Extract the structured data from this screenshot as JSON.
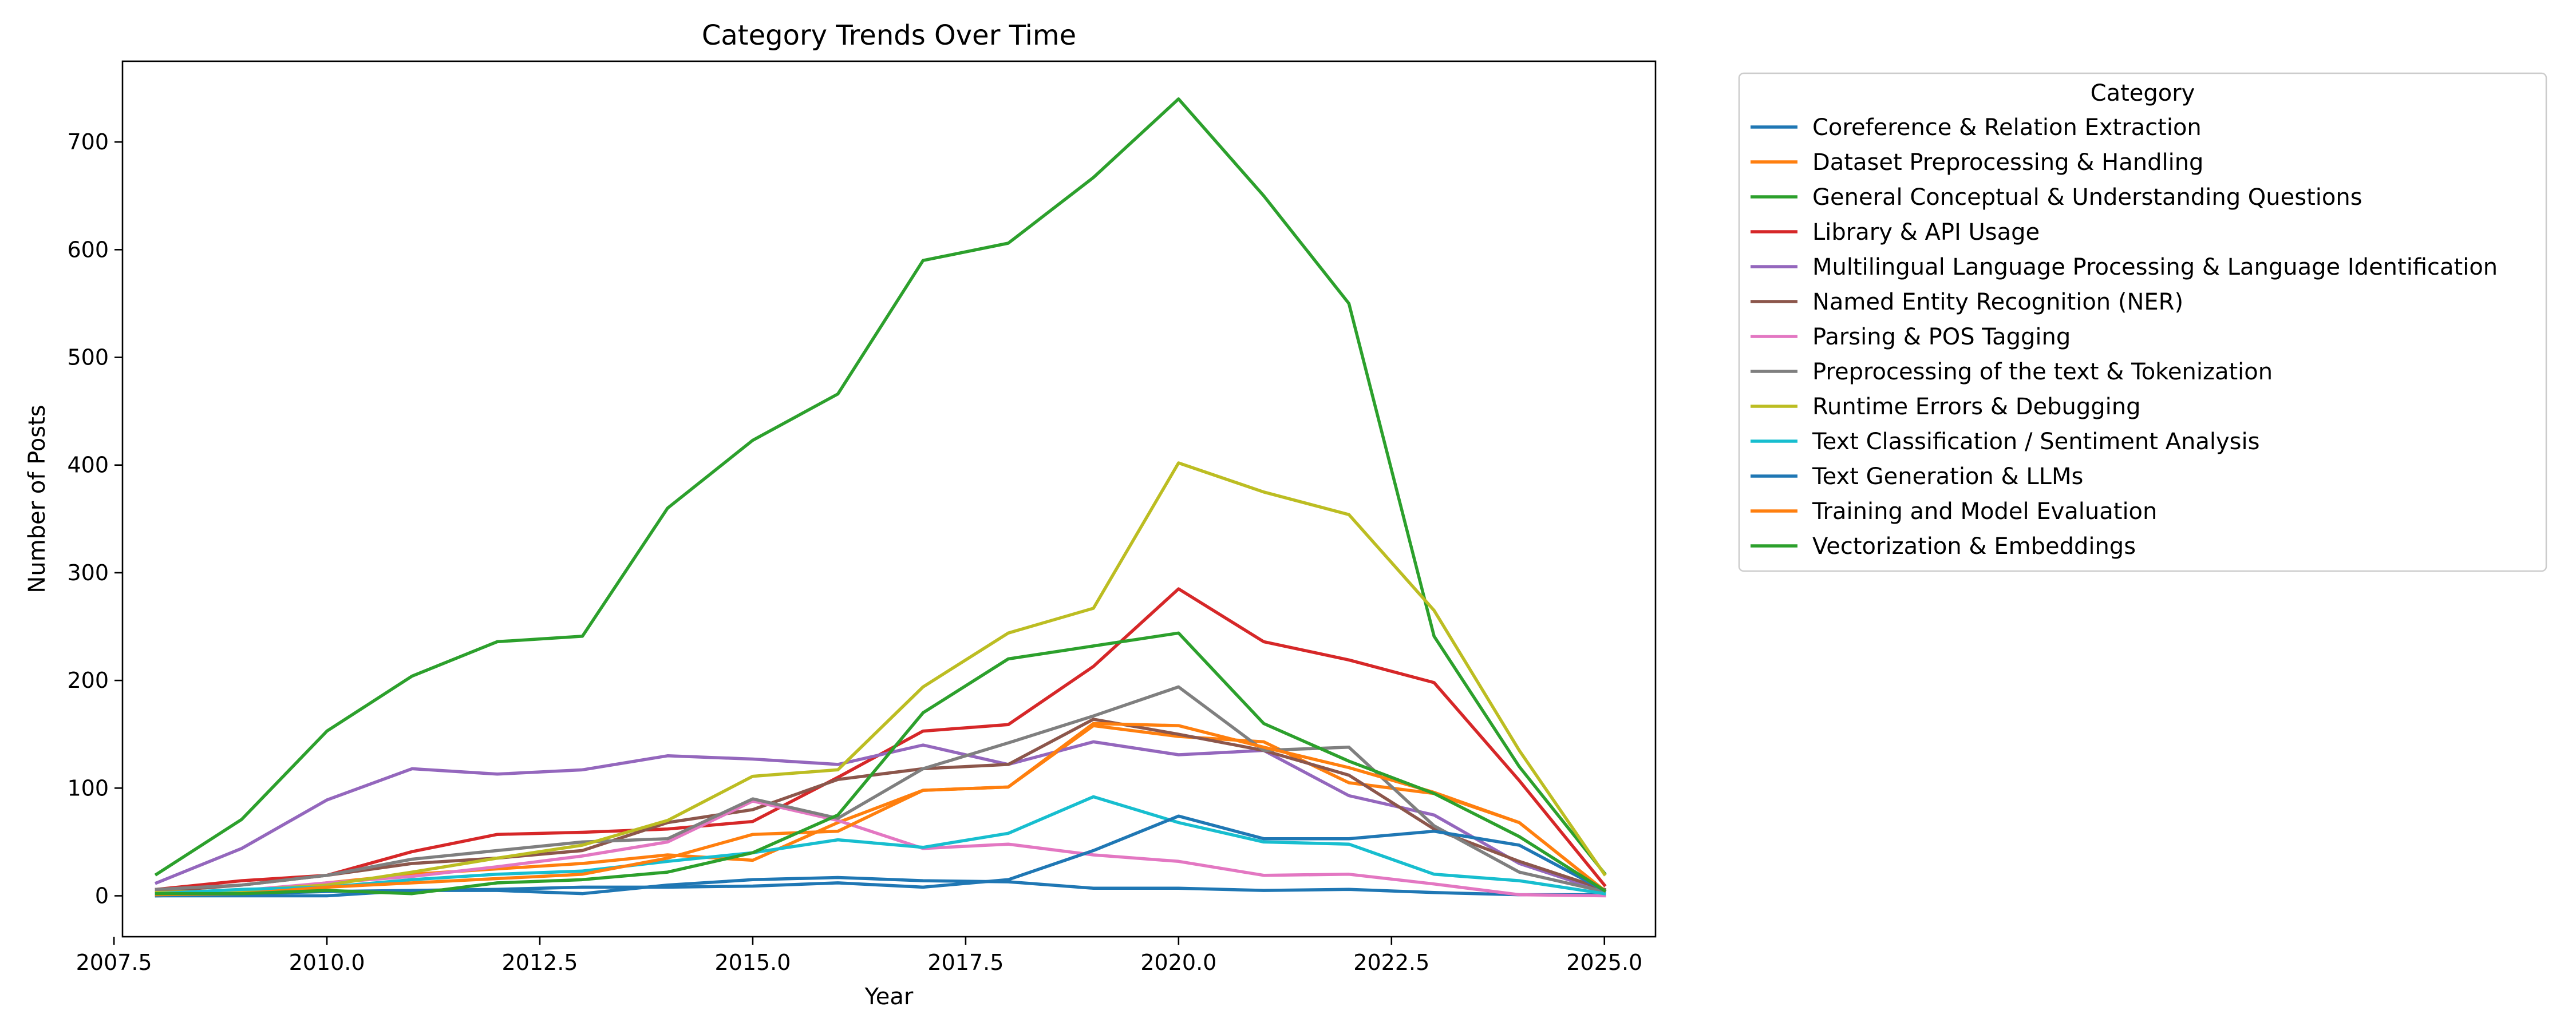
{
  "chart_data": {
    "type": "line",
    "title": "Category Trends Over Time",
    "xlabel": "Year",
    "ylabel": "Number of Posts",
    "xlim": [
      2007.6,
      2025.6
    ],
    "ylim": [
      -38,
      775
    ],
    "xticks": [
      2007.5,
      2010.0,
      2012.5,
      2015.0,
      2017.5,
      2020.0,
      2022.5,
      2025.0
    ],
    "xtick_labels": [
      "2007.5",
      "2010.0",
      "2012.5",
      "2015.0",
      "2017.5",
      "2020.0",
      "2022.5",
      "2025.0"
    ],
    "yticks": [
      0,
      100,
      200,
      300,
      400,
      500,
      600,
      700
    ],
    "ytick_labels": [
      "0",
      "100",
      "200",
      "300",
      "400",
      "500",
      "600",
      "700"
    ],
    "grid": false,
    "legend_title": "Category",
    "legend_placement": "outside-right",
    "x": [
      2008,
      2009,
      2010,
      2011,
      2012,
      2013,
      2014,
      2015,
      2016,
      2017,
      2018,
      2019,
      2020,
      2021,
      2022,
      2023,
      2024,
      2025
    ],
    "series": [
      {
        "name": "Coreference & Relation Extraction",
        "color": "#1f77b4",
        "values": [
          0,
          0,
          0,
          5,
          5,
          2,
          10,
          15,
          17,
          14,
          13,
          7,
          7,
          5,
          6,
          3,
          1,
          1
        ]
      },
      {
        "name": "Dataset Preprocessing & Handling",
        "color": "#ff7f0e",
        "values": [
          2,
          3,
          12,
          20,
          25,
          30,
          38,
          33,
          68,
          98,
          101,
          158,
          148,
          143,
          105,
          95,
          68,
          5
        ]
      },
      {
        "name": "General Conceptual & Understanding Questions",
        "color": "#2ca02c",
        "values": [
          20,
          71,
          153,
          204,
          236,
          241,
          360,
          423,
          466,
          590,
          606,
          667,
          740,
          650,
          550,
          241,
          120,
          21
        ]
      },
      {
        "name": "Library & API Usage",
        "color": "#d62728",
        "values": [
          6,
          14,
          19,
          41,
          57,
          59,
          62,
          69,
          110,
          153,
          159,
          213,
          285,
          236,
          219,
          198,
          107,
          10
        ]
      },
      {
        "name": "Multilingual Language Processing & Language Identification",
        "color": "#9467bd",
        "values": [
          12,
          44,
          89,
          118,
          113,
          117,
          130,
          127,
          122,
          140,
          122,
          143,
          131,
          135,
          93,
          75,
          30,
          4
        ]
      },
      {
        "name": "Named Entity Recognition (NER)",
        "color": "#8c564b",
        "values": [
          4,
          10,
          19,
          30,
          35,
          42,
          68,
          80,
          108,
          118,
          122,
          164,
          150,
          135,
          112,
          62,
          32,
          6
        ]
      },
      {
        "name": "Parsing & POS Tagging",
        "color": "#e377c2",
        "values": [
          2,
          5,
          12,
          18,
          27,
          37,
          50,
          88,
          70,
          44,
          48,
          38,
          32,
          19,
          20,
          11,
          1,
          0
        ]
      },
      {
        "name": "Preprocessing of the text & Tokenization",
        "color": "#7f7f7f",
        "values": [
          6,
          10,
          19,
          34,
          42,
          50,
          53,
          90,
          72,
          118,
          142,
          167,
          194,
          135,
          138,
          65,
          22,
          4
        ]
      },
      {
        "name": "Runtime Errors & Debugging",
        "color": "#bcbd22",
        "values": [
          3,
          5,
          10,
          22,
          35,
          47,
          70,
          111,
          117,
          194,
          244,
          267,
          402,
          375,
          354,
          265,
          135,
          20
        ]
      },
      {
        "name": "Text Classification / Sentiment Analysis",
        "color": "#17becf",
        "values": [
          2,
          6,
          8,
          15,
          20,
          23,
          32,
          40,
          52,
          45,
          58,
          92,
          68,
          50,
          48,
          20,
          14,
          2
        ]
      },
      {
        "name": "Text Generation & LLMs",
        "color": "#1f77b4",
        "values": [
          0,
          2,
          4,
          5,
          6,
          8,
          8,
          9,
          12,
          8,
          15,
          42,
          74,
          53,
          53,
          60,
          47,
          5
        ]
      },
      {
        "name": "Training and Model Evaluation",
        "color": "#ff7f0e",
        "values": [
          1,
          2,
          8,
          12,
          16,
          20,
          35,
          57,
          60,
          98,
          101,
          160,
          158,
          138,
          119,
          96,
          68,
          5
        ]
      },
      {
        "name": "Vectorization & Embeddings",
        "color": "#2ca02c",
        "values": [
          2,
          2,
          5,
          2,
          12,
          15,
          22,
          40,
          75,
          170,
          220,
          232,
          244,
          160,
          125,
          95,
          55,
          5
        ]
      }
    ]
  }
}
